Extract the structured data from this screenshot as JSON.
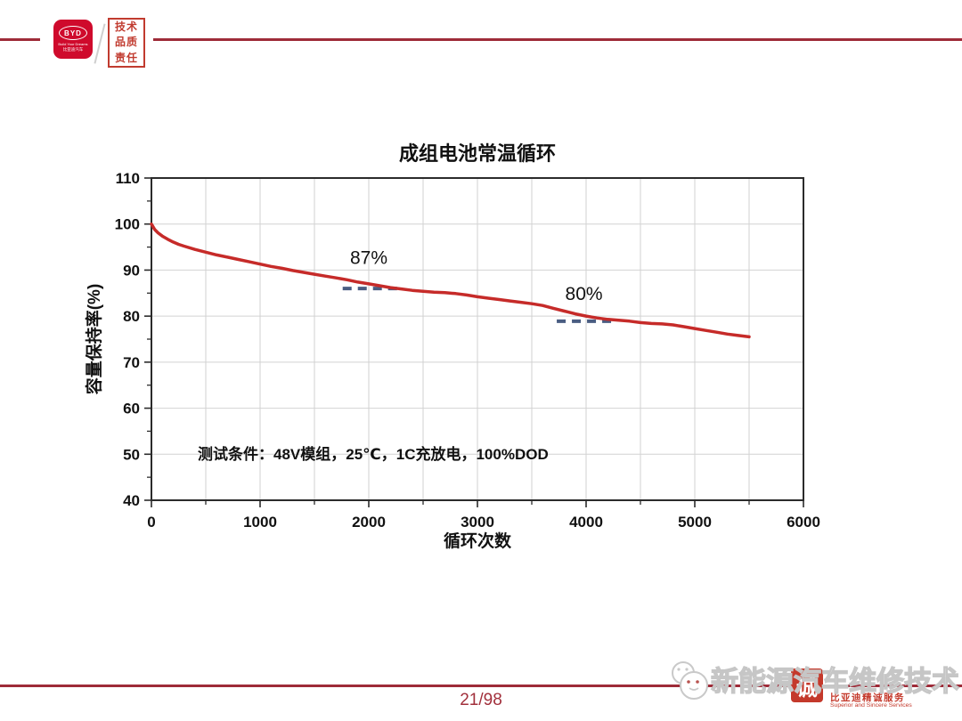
{
  "header": {
    "logo": {
      "text": "BYD",
      "tagline": "Build Your Dreams",
      "cn": "比亚迪汽车"
    },
    "stamp": {
      "line1": "技术",
      "line2": "品质",
      "line3": "责任"
    }
  },
  "chart_data": {
    "type": "line",
    "title": "成组电池常温循环",
    "xlabel": "循环次数",
    "ylabel": "容量保持率(%)",
    "xlim": [
      0,
      6000
    ],
    "ylim": [
      40,
      110
    ],
    "x_major_ticks": [
      0,
      1000,
      2000,
      3000,
      4000,
      5000,
      6000
    ],
    "y_major_ticks": [
      40,
      50,
      60,
      70,
      80,
      90,
      100,
      110
    ],
    "x_minor_step": 500,
    "y_minor_step": 5,
    "grid": {
      "x_step": 500,
      "y_step": 10,
      "color": "#d2d2d2"
    },
    "note": "测试条件：48V模组，25℃，1C充放电，100%DOD",
    "series": [
      {
        "color": "#c62b29",
        "points": [
          [
            0,
            100
          ],
          [
            30,
            98.8
          ],
          [
            60,
            98.1
          ],
          [
            100,
            97.4
          ],
          [
            150,
            96.7
          ],
          [
            200,
            96.1
          ],
          [
            250,
            95.6
          ],
          [
            300,
            95.2
          ],
          [
            400,
            94.5
          ],
          [
            500,
            93.9
          ],
          [
            600,
            93.3
          ],
          [
            700,
            92.8
          ],
          [
            800,
            92.3
          ],
          [
            900,
            91.8
          ],
          [
            1000,
            91.3
          ],
          [
            1100,
            90.8
          ],
          [
            1200,
            90.4
          ],
          [
            1300,
            89.9
          ],
          [
            1400,
            89.5
          ],
          [
            1500,
            89.1
          ],
          [
            1600,
            88.7
          ],
          [
            1700,
            88.3
          ],
          [
            1800,
            87.9
          ],
          [
            1900,
            87.4
          ],
          [
            2000,
            87.0
          ],
          [
            2100,
            86.6
          ],
          [
            2200,
            86.2
          ],
          [
            2300,
            85.9
          ],
          [
            2400,
            85.6
          ],
          [
            2500,
            85.4
          ],
          [
            2600,
            85.2
          ],
          [
            2700,
            85.1
          ],
          [
            2800,
            84.9
          ],
          [
            2900,
            84.6
          ],
          [
            3000,
            84.2
          ],
          [
            3100,
            83.9
          ],
          [
            3200,
            83.6
          ],
          [
            3300,
            83.3
          ],
          [
            3400,
            83.0
          ],
          [
            3500,
            82.7
          ],
          [
            3600,
            82.3
          ],
          [
            3700,
            81.7
          ],
          [
            3800,
            81.1
          ],
          [
            3900,
            80.5
          ],
          [
            4000,
            80.0
          ],
          [
            4100,
            79.6
          ],
          [
            4200,
            79.3
          ],
          [
            4300,
            79.1
          ],
          [
            4400,
            78.9
          ],
          [
            4500,
            78.6
          ],
          [
            4600,
            78.4
          ],
          [
            4700,
            78.3
          ],
          [
            4800,
            78.1
          ],
          [
            4900,
            77.7
          ],
          [
            5000,
            77.3
          ],
          [
            5100,
            76.9
          ],
          [
            5200,
            76.5
          ],
          [
            5300,
            76.1
          ],
          [
            5400,
            75.8
          ],
          [
            5500,
            75.5
          ]
        ]
      }
    ],
    "annotations": [
      {
        "text": "87%",
        "x": 2000,
        "y": 91.3,
        "dash": {
          "x1": 1760,
          "x2": 2280,
          "y": 86.0
        }
      },
      {
        "text": "80%",
        "x": 3980,
        "y": 83.5,
        "dash": {
          "x1": 3730,
          "x2": 4245,
          "y": 78.9
        }
      }
    ],
    "dash_color": "#4a5d82",
    "axis_color": "#2b2b2b"
  },
  "footer": {
    "watermark_text": "新能源汽车维修技术",
    "seal_char": "诚",
    "seal_text_cn": "比亚迪精诚服务",
    "seal_text_en": "Superior and Sincere Services",
    "page_number": "21/98"
  },
  "theme": {
    "accent_red": "#9e2b38",
    "logo_red": "#cf0a2c",
    "seal_red": "#c4392b"
  }
}
